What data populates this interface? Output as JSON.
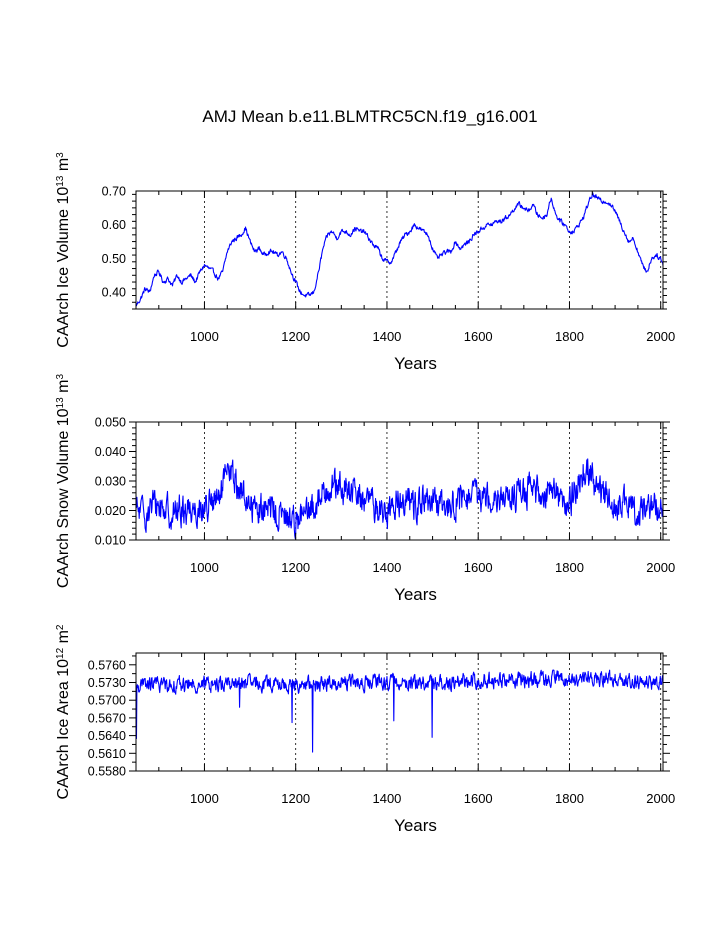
{
  "title": "AMJ Mean b.e11.BLMTRC5CN.f19_g16.001",
  "colors": {
    "series": "#0000ff",
    "axis": "#000000",
    "grid": "#000000"
  },
  "chart_data": [
    {
      "type": "line",
      "name": "ice-volume",
      "ylabel_main": "CAArch Ice Volume 10",
      "ylabel_exp": "13",
      "ylabel_unit": " m",
      "ylabel_unit_exp": "3",
      "xlabel": "Years",
      "xlim": [
        850,
        2005
      ],
      "ylim": [
        0.35,
        0.7
      ],
      "xticks": [
        1000,
        1200,
        1400,
        1600,
        1800,
        2000
      ],
      "xtick_labels": [
        "1000",
        "1200",
        "1400",
        "1600",
        "1800",
        "2000"
      ],
      "yticks": [
        0.4,
        0.5,
        0.6,
        0.7
      ],
      "ytick_labels": [
        "0.40",
        "0.50",
        "0.60",
        "0.70"
      ],
      "vgrid": [
        1000,
        1200,
        1400,
        1600,
        1800,
        2000
      ],
      "series_name": "CAArch Ice Volume",
      "x": [
        850,
        860,
        870,
        880,
        890,
        900,
        910,
        920,
        930,
        940,
        950,
        960,
        970,
        980,
        990,
        1000,
        1010,
        1020,
        1030,
        1040,
        1050,
        1060,
        1070,
        1080,
        1090,
        1100,
        1110,
        1120,
        1130,
        1140,
        1150,
        1160,
        1170,
        1180,
        1190,
        1200,
        1210,
        1220,
        1230,
        1240,
        1250,
        1260,
        1270,
        1280,
        1290,
        1300,
        1310,
        1320,
        1330,
        1340,
        1350,
        1360,
        1370,
        1380,
        1390,
        1400,
        1410,
        1420,
        1430,
        1440,
        1450,
        1460,
        1470,
        1480,
        1490,
        1500,
        1510,
        1520,
        1530,
        1540,
        1550,
        1560,
        1570,
        1580,
        1590,
        1600,
        1610,
        1620,
        1630,
        1640,
        1650,
        1660,
        1670,
        1680,
        1690,
        1700,
        1710,
        1720,
        1730,
        1740,
        1750,
        1760,
        1770,
        1780,
        1790,
        1800,
        1810,
        1820,
        1830,
        1840,
        1850,
        1860,
        1870,
        1880,
        1890,
        1900,
        1910,
        1920,
        1930,
        1940,
        1950,
        1960,
        1970,
        1980,
        1990,
        2000,
        2005
      ],
      "values": [
        0.36,
        0.38,
        0.41,
        0.4,
        0.45,
        0.46,
        0.43,
        0.44,
        0.42,
        0.45,
        0.43,
        0.44,
        0.45,
        0.43,
        0.46,
        0.48,
        0.47,
        0.46,
        0.44,
        0.46,
        0.52,
        0.55,
        0.56,
        0.57,
        0.59,
        0.55,
        0.52,
        0.53,
        0.51,
        0.52,
        0.52,
        0.51,
        0.52,
        0.5,
        0.46,
        0.43,
        0.4,
        0.39,
        0.39,
        0.4,
        0.46,
        0.53,
        0.57,
        0.58,
        0.56,
        0.58,
        0.58,
        0.57,
        0.59,
        0.58,
        0.58,
        0.56,
        0.54,
        0.53,
        0.5,
        0.49,
        0.49,
        0.52,
        0.55,
        0.57,
        0.58,
        0.6,
        0.59,
        0.58,
        0.57,
        0.53,
        0.5,
        0.51,
        0.52,
        0.52,
        0.55,
        0.53,
        0.54,
        0.55,
        0.57,
        0.58,
        0.59,
        0.6,
        0.6,
        0.61,
        0.61,
        0.62,
        0.63,
        0.65,
        0.66,
        0.65,
        0.64,
        0.66,
        0.63,
        0.62,
        0.63,
        0.68,
        0.63,
        0.61,
        0.6,
        0.58,
        0.58,
        0.6,
        0.62,
        0.66,
        0.69,
        0.68,
        0.67,
        0.67,
        0.66,
        0.64,
        0.61,
        0.58,
        0.55,
        0.56,
        0.52,
        0.48,
        0.46,
        0.5,
        0.51,
        0.5,
        0.48
      ],
      "noise": 0.006
    },
    {
      "type": "line",
      "name": "snow-volume",
      "ylabel_main": "CAArch Snow Volume 10",
      "ylabel_exp": "13",
      "ylabel_unit": " m",
      "ylabel_unit_exp": "3",
      "xlabel": "Years",
      "xlim": [
        850,
        2005
      ],
      "ylim": [
        0.01,
        0.05
      ],
      "xticks": [
        1000,
        1200,
        1400,
        1600,
        1800,
        2000
      ],
      "xtick_labels": [
        "1000",
        "1200",
        "1400",
        "1600",
        "1800",
        "2000"
      ],
      "yticks": [
        0.01,
        0.02,
        0.03,
        0.04,
        0.05
      ],
      "ytick_labels": [
        "0.010",
        "0.020",
        "0.030",
        "0.040",
        "0.050"
      ],
      "vgrid": [
        1000,
        1200,
        1400,
        1600,
        1800,
        2000
      ],
      "series_name": "CAArch Snow Volume",
      "x": [
        850,
        870,
        890,
        910,
        930,
        950,
        970,
        990,
        1010,
        1030,
        1050,
        1060,
        1070,
        1090,
        1110,
        1130,
        1150,
        1170,
        1190,
        1210,
        1230,
        1250,
        1270,
        1280,
        1300,
        1320,
        1340,
        1360,
        1380,
        1400,
        1420,
        1440,
        1460,
        1480,
        1500,
        1520,
        1540,
        1560,
        1580,
        1600,
        1620,
        1640,
        1660,
        1680,
        1700,
        1720,
        1740,
        1760,
        1770,
        1780,
        1800,
        1820,
        1830,
        1840,
        1850,
        1860,
        1870,
        1880,
        1900,
        1920,
        1940,
        1960,
        1980,
        2000,
        2005
      ],
      "values": [
        0.02,
        0.019,
        0.022,
        0.021,
        0.019,
        0.02,
        0.021,
        0.02,
        0.022,
        0.023,
        0.032,
        0.033,
        0.029,
        0.024,
        0.021,
        0.02,
        0.02,
        0.018,
        0.017,
        0.018,
        0.019,
        0.024,
        0.028,
        0.029,
        0.027,
        0.026,
        0.025,
        0.023,
        0.021,
        0.019,
        0.023,
        0.024,
        0.022,
        0.023,
        0.022,
        0.021,
        0.022,
        0.023,
        0.024,
        0.025,
        0.025,
        0.026,
        0.024,
        0.025,
        0.026,
        0.027,
        0.025,
        0.029,
        0.028,
        0.022,
        0.022,
        0.03,
        0.033,
        0.034,
        0.031,
        0.027,
        0.026,
        0.024,
        0.021,
        0.022,
        0.02,
        0.021,
        0.021,
        0.022,
        0.02
      ],
      "noise": 0.0045
    },
    {
      "type": "line",
      "name": "ice-area",
      "ylabel_main": "CAArch Ice Area 10",
      "ylabel_exp": "12",
      "ylabel_unit": " m",
      "ylabel_unit_exp": "2",
      "xlabel": "Years",
      "xlim": [
        850,
        2005
      ],
      "ylim": [
        0.558,
        0.578
      ],
      "xticks": [
        1000,
        1200,
        1400,
        1600,
        1800,
        2000
      ],
      "xtick_labels": [
        "1000",
        "1200",
        "1400",
        "1600",
        "1800",
        "2000"
      ],
      "yticks": [
        0.558,
        0.561,
        0.564,
        0.567,
        0.57,
        0.573,
        0.576
      ],
      "ytick_labels": [
        "0.5580",
        "0.5610",
        "0.5640",
        "0.5670",
        "0.5700",
        "0.5730",
        "0.5760"
      ],
      "vgrid": [
        1000,
        1200,
        1400,
        1600,
        1800,
        2000
      ],
      "series_name": "CAArch Ice Area",
      "x": [
        850,
        900,
        950,
        1000,
        1050,
        1100,
        1150,
        1200,
        1250,
        1300,
        1350,
        1400,
        1450,
        1500,
        1550,
        1600,
        1650,
        1700,
        1750,
        1800,
        1850,
        1900,
        1950,
        2000,
        2005
      ],
      "values": [
        0.5725,
        0.5728,
        0.5726,
        0.5727,
        0.5729,
        0.5728,
        0.5727,
        0.5725,
        0.5727,
        0.5731,
        0.5729,
        0.573,
        0.573,
        0.5729,
        0.5731,
        0.5733,
        0.5734,
        0.5735,
        0.5737,
        0.5735,
        0.5738,
        0.5737,
        0.5733,
        0.573,
        0.573
      ],
      "noise": 0.0011,
      "dips": [
        {
          "x": 851,
          "value": 0.5635
        },
        {
          "x": 1237,
          "value": 0.5612
        },
        {
          "x": 1499,
          "value": 0.5637
        },
        {
          "x": 1415,
          "value": 0.5665
        },
        {
          "x": 1192,
          "value": 0.5662
        },
        {
          "x": 1077,
          "value": 0.5688
        }
      ]
    }
  ]
}
